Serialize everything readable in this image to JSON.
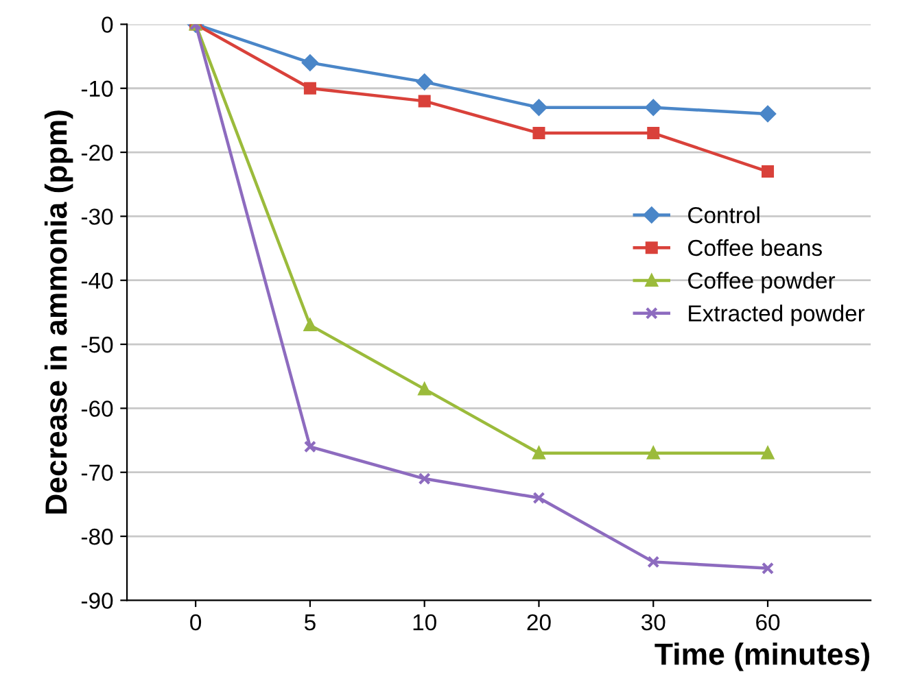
{
  "chart_data": {
    "type": "line",
    "xlabel": "Time (minutes)",
    "ylabel": "Decrease in ammonia (ppm)",
    "categories": [
      "0",
      "5",
      "10",
      "20",
      "30",
      "60"
    ],
    "ylim": [
      -90,
      0
    ],
    "yticks": [
      -90,
      -80,
      -70,
      -60,
      -50,
      -40,
      -30,
      -20,
      -10,
      0
    ],
    "grid": "y",
    "legend": "right",
    "series": [
      {
        "name": "Control",
        "color": "#4a86c8",
        "marker": "diamond",
        "values": [
          0,
          -6,
          -9,
          -13,
          -13,
          -14
        ]
      },
      {
        "name": "Coffee beans",
        "color": "#d9413a",
        "marker": "square",
        "values": [
          0,
          -10,
          -12,
          -17,
          -17,
          -23
        ]
      },
      {
        "name": "Coffee powder",
        "color": "#9bbb3b",
        "marker": "triangle",
        "values": [
          0,
          -47,
          -57,
          -67,
          -67,
          -67
        ]
      },
      {
        "name": "Extracted powder",
        "color": "#8d6bbf",
        "marker": "cross",
        "values": [
          0,
          -66,
          -71,
          -74,
          -84,
          -85
        ]
      }
    ]
  }
}
